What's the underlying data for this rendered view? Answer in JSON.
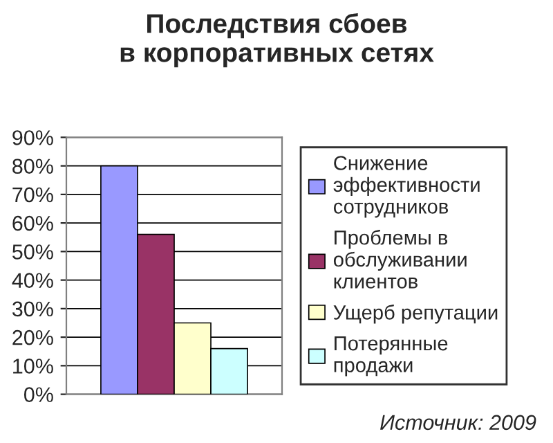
{
  "chart_data": {
    "type": "bar",
    "title": "Последствия сбоев\nв корпоративных сетях",
    "categories": [
      null
    ],
    "series": [
      {
        "name": "Снижение эффективности сотрудников",
        "color": "#9999ff",
        "values": [
          80
        ]
      },
      {
        "name": "Проблемы в обслуживании клиентов",
        "color": "#993366",
        "values": [
          56
        ]
      },
      {
        "name": "Ущерб репутации",
        "color": "#ffffcc",
        "values": [
          25
        ]
      },
      {
        "name": "Потерянные продажи",
        "color": "#ccffff",
        "values": [
          16
        ]
      }
    ],
    "ylim": [
      0,
      90
    ],
    "yticks": [
      {
        "value": 0,
        "label": "0%"
      },
      {
        "value": 10,
        "label": "10%"
      },
      {
        "value": 20,
        "label": "20%"
      },
      {
        "value": 30,
        "label": "30%"
      },
      {
        "value": 40,
        "label": "40%"
      },
      {
        "value": 50,
        "label": "50%"
      },
      {
        "value": 60,
        "label": "60%"
      },
      {
        "value": 70,
        "label": "70%"
      },
      {
        "value": 80,
        "label": "80%"
      },
      {
        "value": 90,
        "label": "90%"
      }
    ],
    "grid": "y",
    "legend": "right",
    "annotations": [
      "Источник: 2009"
    ]
  }
}
